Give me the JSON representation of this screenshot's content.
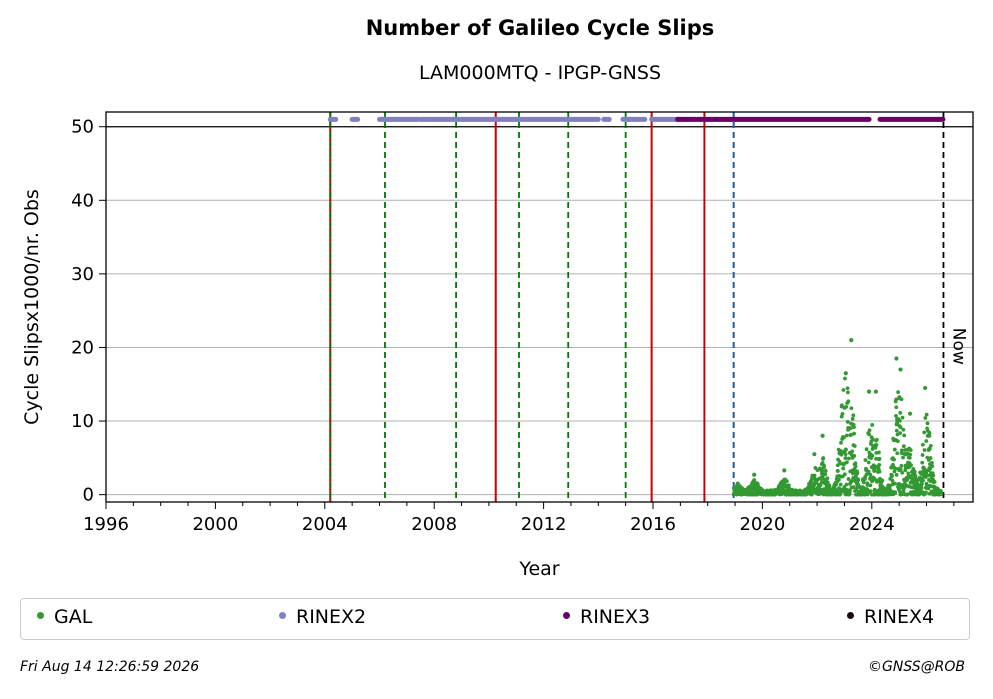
{
  "header": {
    "title": "Number of Galileo Cycle Slips",
    "subtitle": "LAM000MTQ - IPGP-GNSS"
  },
  "footer": {
    "timestamp": "Fri Aug 14 12:26:59 2026",
    "credit": "©GNSS@ROB"
  },
  "colors": {
    "gal": "#339933",
    "rinex2": "#8080c0",
    "rinex3": "#660066",
    "rinex4": "#1a0a1a",
    "red_line": "#cc0000",
    "green_dashed": "#007700",
    "blue_dashed": "#1f5fa0",
    "now_line": "#000000",
    "grid": "#b0b0b0"
  },
  "chart_data": {
    "type": "scatter",
    "title": "Number of Galileo Cycle Slips",
    "subtitle": "LAM000MTQ - IPGP-GNSS",
    "xlabel": "Year",
    "ylabel": "Cycle Slipsx1000/nr. Obs",
    "xlim": [
      1996,
      2027.7
    ],
    "ylim": [
      -1,
      52
    ],
    "xticks": [
      1996,
      2000,
      2004,
      2008,
      2012,
      2016,
      2020,
      2024
    ],
    "yticks": [
      0,
      10,
      20,
      30,
      40,
      50
    ],
    "grid": "horizontal",
    "legend_position": "bottom",
    "legend": [
      "GAL",
      "RINEX2",
      "RINEX3",
      "RINEX4"
    ],
    "now_label": "Now",
    "now_date": 2026.62,
    "event_lines": {
      "red_solid": [
        2004.2,
        2010.25,
        2015.95,
        2017.88
      ],
      "green_dashed": [
        2004.2,
        2006.2,
        2008.8,
        2011.1,
        2012.9,
        2015.0
      ],
      "blue_dashed": [
        2018.95
      ]
    },
    "availability_bars": {
      "y": 51,
      "rinex2": [
        [
          2004.2,
          2004.4
        ],
        [
          2005.0,
          2005.2
        ],
        [
          2006.0,
          2007.4
        ],
        [
          2007.5,
          2014.0
        ],
        [
          2014.2,
          2014.4
        ],
        [
          2014.9,
          2015.7
        ],
        [
          2015.95,
          2017.0
        ]
      ],
      "rinex3": [
        [
          2016.9,
          2017.8
        ],
        [
          2017.85,
          2023.9
        ],
        [
          2024.3,
          2026.6
        ]
      ]
    },
    "gal_series": {
      "name": "GAL",
      "start": 2018.95,
      "end": 2026.55,
      "typical_range": [
        0,
        12
      ],
      "peaks": [
        {
          "x": 2019.1,
          "y": 1.5
        },
        {
          "x": 2019.7,
          "y": 2.7
        },
        {
          "x": 2020.8,
          "y": 3.3
        },
        {
          "x": 2021.9,
          "y": 5.5
        },
        {
          "x": 2022.2,
          "y": 8.0
        },
        {
          "x": 2022.9,
          "y": 12.0
        },
        {
          "x": 2023.05,
          "y": 16.5
        },
        {
          "x": 2023.25,
          "y": 21.0
        },
        {
          "x": 2023.9,
          "y": 14.0
        },
        {
          "x": 2024.15,
          "y": 14.0
        },
        {
          "x": 2024.9,
          "y": 18.5
        },
        {
          "x": 2025.05,
          "y": 17.0
        },
        {
          "x": 2025.4,
          "y": 11.0
        },
        {
          "x": 2025.95,
          "y": 14.5
        },
        {
          "x": 2026.1,
          "y": 8.0
        }
      ]
    }
  }
}
